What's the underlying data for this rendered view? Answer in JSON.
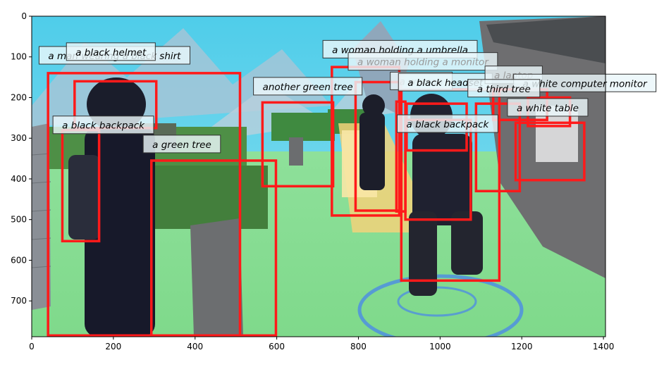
{
  "x_axis": {
    "ticks": [
      0,
      200,
      400,
      600,
      800,
      1000,
      1200,
      1400
    ],
    "range": [
      0,
      1405
    ]
  },
  "y_axis": {
    "ticks": [
      0,
      100,
      200,
      300,
      400,
      500,
      600,
      700
    ],
    "range": [
      0,
      788
    ]
  },
  "boxes": [
    {
      "label": "a man wearing a black shirt",
      "x0": 40,
      "y0": 140,
      "x1": 510,
      "y1": 785,
      "lx": 18,
      "ly": 97,
      "faded": false
    },
    {
      "label": "a black helmet",
      "x0": 105,
      "y0": 160,
      "x1": 305,
      "y1": 275,
      "lx": 85,
      "ly": 88,
      "faded": false
    },
    {
      "label": "a black backpack",
      "x0": 75,
      "y0": 280,
      "x1": 165,
      "y1": 553,
      "lx": 52,
      "ly": 268,
      "faded": false
    },
    {
      "label": "a green tree",
      "x0": 293,
      "y0": 355,
      "x1": 598,
      "y1": 785,
      "lx": 273,
      "ly": 315,
      "faded": false
    },
    {
      "label": "another green tree",
      "x0": 565,
      "y0": 212,
      "x1": 738,
      "y1": 418,
      "lx": 543,
      "ly": 173,
      "faded": false
    },
    {
      "label": "a woman holding a umbrella",
      "x0": 735,
      "y0": 125,
      "x1": 900,
      "y1": 490,
      "lx": 713,
      "ly": 82,
      "faded": false
    },
    {
      "label": "a woman holding a monitor",
      "x0": 793,
      "y0": 162,
      "x1": 905,
      "y1": 478,
      "lx": 775,
      "ly": 112,
      "faded": true
    },
    {
      "label": "a woman",
      "x0": 893,
      "y0": 210,
      "x1": 915,
      "y1": 480,
      "lx": 878,
      "ly": 160,
      "faded": true
    },
    {
      "label": "a black headset",
      "x0": 918,
      "y0": 215,
      "x1": 1065,
      "y1": 330,
      "lx": 898,
      "ly": 163,
      "faded": false
    },
    {
      "label": "a laptop",
      "x0": 1130,
      "y0": 180,
      "x1": 1262,
      "y1": 255,
      "lx": 1110,
      "ly": 145,
      "faded": true
    },
    {
      "label": "a white computer monitor",
      "x0": 1215,
      "y0": 200,
      "x1": 1318,
      "y1": 270,
      "lx": 1180,
      "ly": 165,
      "faded": false
    },
    {
      "label": "a third tree",
      "x0": 1088,
      "y0": 215,
      "x1": 1195,
      "y1": 430,
      "lx": 1068,
      "ly": 178,
      "faded": false
    },
    {
      "label": "a white table",
      "x0": 1185,
      "y0": 262,
      "x1": 1353,
      "y1": 403,
      "lx": 1165,
      "ly": 225,
      "faded": false
    },
    {
      "label": "a black backpack",
      "x0": 915,
      "y0": 255,
      "x1": 1075,
      "y1": 500,
      "lx": 895,
      "ly": 265,
      "faded": false
    },
    {
      "label": "",
      "x0": 905,
      "y0": 180,
      "x1": 1145,
      "y1": 650,
      "lx": 0,
      "ly": 0,
      "faded": false
    }
  ]
}
